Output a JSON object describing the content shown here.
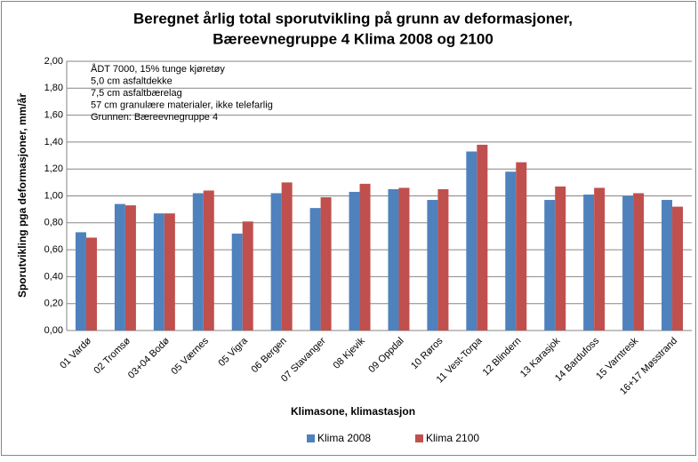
{
  "chart_data": {
    "type": "bar",
    "title": [
      "Beregnet årlig total sporutvikling på grunn av deformasjoner,",
      "Bæreevnegruppe 4 Klima 2008 og 2100"
    ],
    "annotation": [
      "ÅDT 7000, 15% tunge kjøretøy",
      "5,0 cm asfaltdekke",
      "7,5 cm asfaltbærelag",
      "57 cm granulære materialer, ikke telefarlig",
      "Grunnen: Bæreevnegruppe 4"
    ],
    "x_label": "Klimasone, klimastasjon",
    "y_label": "Sporutvikling pga deformasjoner, mm/år",
    "categories": [
      "01 Vardø",
      "02 Tromsø",
      "03+04 Bodø",
      "05 Værnes",
      "05 Vigra",
      "06 Bergen",
      "07 Stavanger",
      "08 Kjevik",
      "09 Oppdal",
      "10 Røros",
      "11 Vest-Torpa",
      "12 Blindern",
      "13 Karasjok",
      "14 Bardufoss",
      "15 Varntresk",
      "16+17 Møsstrand"
    ],
    "series": [
      {
        "name": "Klima 2008",
        "color": "#4f81bd",
        "values": [
          0.73,
          0.94,
          0.87,
          1.02,
          0.72,
          1.02,
          0.91,
          1.03,
          1.05,
          0.97,
          1.33,
          1.18,
          0.97,
          1.01,
          1.0,
          0.97
        ]
      },
      {
        "name": "Klima 2100",
        "color": "#c0504d",
        "values": [
          0.69,
          0.93,
          0.87,
          1.04,
          0.81,
          1.1,
          0.99,
          1.09,
          1.06,
          1.05,
          1.38,
          1.25,
          1.07,
          1.06,
          1.02,
          0.92
        ]
      }
    ],
    "ylim": [
      0,
      2
    ],
    "yticks": [
      {
        "value": 0,
        "label": "0,00"
      },
      {
        "value": 0.2,
        "label": "0,20"
      },
      {
        "value": 0.4,
        "label": "0,40"
      },
      {
        "value": 0.6,
        "label": "0,60"
      },
      {
        "value": 0.8,
        "label": "0,80"
      },
      {
        "value": 1,
        "label": "1,00"
      },
      {
        "value": 1.2,
        "label": "1,20"
      },
      {
        "value": 1.4,
        "label": "1,40"
      },
      {
        "value": 1.6,
        "label": "1,60"
      },
      {
        "value": 1.8,
        "label": "1,80"
      },
      {
        "value": 2,
        "label": "2,00"
      }
    ],
    "grid": true
  }
}
